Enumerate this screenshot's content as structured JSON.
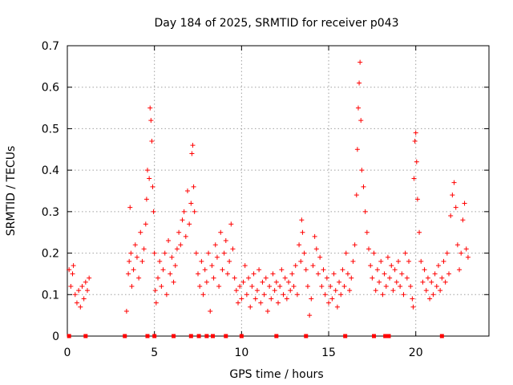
{
  "chart_data": {
    "type": "scatter",
    "title": "Day 184 of 2025, SRMTID for receiver p043",
    "xlabel": "GPS time / hours",
    "ylabel": "SRMTID / TECUs",
    "xlim": [
      0,
      24.2
    ],
    "ylim": [
      0,
      0.7
    ],
    "xticks": [
      0,
      5,
      10,
      15,
      20
    ],
    "yticks": [
      0,
      0.1,
      0.2,
      0.3,
      0.4,
      0.5,
      0.6,
      0.7
    ],
    "grid": true,
    "series": [
      {
        "name": "SRMTID",
        "color": "#ff0000",
        "marker": "+",
        "points": [
          [
            0.1,
            0.16
          ],
          [
            0.2,
            0.12
          ],
          [
            0.3,
            0.15
          ],
          [
            0.35,
            0.17
          ],
          [
            0.45,
            0.1
          ],
          [
            0.55,
            0.08
          ],
          [
            0.65,
            0.11
          ],
          [
            0.75,
            0.07
          ],
          [
            0.85,
            0.12
          ],
          [
            0.95,
            0.09
          ],
          [
            1.05,
            0.13
          ],
          [
            1.15,
            0.11
          ],
          [
            1.25,
            0.14
          ],
          [
            3.4,
            0.06
          ],
          [
            3.5,
            0.15
          ],
          [
            3.55,
            0.18
          ],
          [
            3.6,
            0.31
          ],
          [
            3.65,
            0.2
          ],
          [
            3.7,
            0.12
          ],
          [
            3.8,
            0.16
          ],
          [
            3.9,
            0.22
          ],
          [
            4.0,
            0.19
          ],
          [
            4.1,
            0.14
          ],
          [
            4.2,
            0.25
          ],
          [
            4.3,
            0.18
          ],
          [
            4.4,
            0.21
          ],
          [
            4.5,
            0.27
          ],
          [
            4.55,
            0.33
          ],
          [
            4.6,
            0.4
          ],
          [
            4.7,
            0.38
          ],
          [
            4.75,
            0.55
          ],
          [
            4.8,
            0.52
          ],
          [
            4.85,
            0.47
          ],
          [
            4.9,
            0.36
          ],
          [
            4.95,
            0.3
          ],
          [
            5.0,
            0.2
          ],
          [
            5.05,
            0.11
          ],
          [
            5.1,
            0.08
          ],
          [
            5.2,
            0.14
          ],
          [
            5.3,
            0.18
          ],
          [
            5.4,
            0.12
          ],
          [
            5.5,
            0.16
          ],
          [
            5.6,
            0.2
          ],
          [
            5.7,
            0.1
          ],
          [
            5.8,
            0.23
          ],
          [
            5.9,
            0.15
          ],
          [
            6.0,
            0.19
          ],
          [
            6.1,
            0.13
          ],
          [
            6.2,
            0.17
          ],
          [
            6.3,
            0.21
          ],
          [
            6.4,
            0.25
          ],
          [
            6.5,
            0.22
          ],
          [
            6.6,
            0.28
          ],
          [
            6.7,
            0.3
          ],
          [
            6.8,
            0.24
          ],
          [
            6.9,
            0.35
          ],
          [
            7.0,
            0.27
          ],
          [
            7.1,
            0.32
          ],
          [
            7.15,
            0.44
          ],
          [
            7.2,
            0.46
          ],
          [
            7.25,
            0.36
          ],
          [
            7.3,
            0.3
          ],
          [
            7.4,
            0.2
          ],
          [
            7.5,
            0.15
          ],
          [
            7.6,
            0.12
          ],
          [
            7.7,
            0.18
          ],
          [
            7.8,
            0.1
          ],
          [
            7.9,
            0.16
          ],
          [
            8.0,
            0.13
          ],
          [
            8.1,
            0.2
          ],
          [
            8.2,
            0.06
          ],
          [
            8.3,
            0.17
          ],
          [
            8.4,
            0.14
          ],
          [
            8.5,
            0.22
          ],
          [
            8.6,
            0.19
          ],
          [
            8.7,
            0.12
          ],
          [
            8.8,
            0.25
          ],
          [
            8.9,
            0.16
          ],
          [
            9.0,
            0.2
          ],
          [
            9.1,
            0.23
          ],
          [
            9.2,
            0.15
          ],
          [
            9.3,
            0.18
          ],
          [
            9.4,
            0.27
          ],
          [
            9.5,
            0.21
          ],
          [
            9.6,
            0.14
          ],
          [
            9.7,
            0.11
          ],
          [
            9.8,
            0.08
          ],
          [
            9.9,
            0.12
          ],
          [
            10.0,
            0.09
          ],
          [
            10.1,
            0.13
          ],
          [
            10.2,
            0.17
          ],
          [
            10.3,
            0.1
          ],
          [
            10.4,
            0.14
          ],
          [
            10.5,
            0.07
          ],
          [
            10.6,
            0.12
          ],
          [
            10.7,
            0.15
          ],
          [
            10.8,
            0.09
          ],
          [
            10.9,
            0.11
          ],
          [
            11.0,
            0.16
          ],
          [
            11.1,
            0.08
          ],
          [
            11.2,
            0.13
          ],
          [
            11.3,
            0.1
          ],
          [
            11.4,
            0.14
          ],
          [
            11.5,
            0.06
          ],
          [
            11.6,
            0.12
          ],
          [
            11.7,
            0.09
          ],
          [
            11.8,
            0.15
          ],
          [
            11.9,
            0.11
          ],
          [
            12.0,
            0.13
          ],
          [
            12.1,
            0.08
          ],
          [
            12.2,
            0.12
          ],
          [
            12.3,
            0.16
          ],
          [
            12.4,
            0.1
          ],
          [
            12.5,
            0.14
          ],
          [
            12.6,
            0.09
          ],
          [
            12.7,
            0.13
          ],
          [
            12.8,
            0.11
          ],
          [
            12.9,
            0.15
          ],
          [
            13.0,
            0.12
          ],
          [
            13.1,
            0.17
          ],
          [
            13.2,
            0.1
          ],
          [
            13.3,
            0.22
          ],
          [
            13.4,
            0.18
          ],
          [
            13.45,
            0.28
          ],
          [
            13.5,
            0.25
          ],
          [
            13.6,
            0.2
          ],
          [
            13.7,
            0.16
          ],
          [
            13.8,
            0.12
          ],
          [
            13.9,
            0.05
          ],
          [
            14.0,
            0.09
          ],
          [
            14.1,
            0.17
          ],
          [
            14.2,
            0.24
          ],
          [
            14.3,
            0.21
          ],
          [
            14.4,
            0.15
          ],
          [
            14.5,
            0.19
          ],
          [
            14.6,
            0.12
          ],
          [
            14.7,
            0.16
          ],
          [
            14.8,
            0.1
          ],
          [
            14.9,
            0.14
          ],
          [
            15.0,
            0.08
          ],
          [
            15.1,
            0.12
          ],
          [
            15.2,
            0.09
          ],
          [
            15.3,
            0.15
          ],
          [
            15.4,
            0.11
          ],
          [
            15.5,
            0.07
          ],
          [
            15.6,
            0.13
          ],
          [
            15.7,
            0.1
          ],
          [
            15.8,
            0.16
          ],
          [
            15.9,
            0.12
          ],
          [
            16.0,
            0.2
          ],
          [
            16.1,
            0.15
          ],
          [
            16.2,
            0.11
          ],
          [
            16.3,
            0.14
          ],
          [
            16.4,
            0.18
          ],
          [
            16.5,
            0.22
          ],
          [
            16.6,
            0.34
          ],
          [
            16.65,
            0.45
          ],
          [
            16.7,
            0.55
          ],
          [
            16.75,
            0.61
          ],
          [
            16.8,
            0.66
          ],
          [
            16.85,
            0.52
          ],
          [
            16.9,
            0.4
          ],
          [
            17.0,
            0.36
          ],
          [
            17.1,
            0.3
          ],
          [
            17.2,
            0.25
          ],
          [
            17.3,
            0.21
          ],
          [
            17.4,
            0.17
          ],
          [
            17.5,
            0.14
          ],
          [
            17.6,
            0.2
          ],
          [
            17.7,
            0.11
          ],
          [
            17.8,
            0.16
          ],
          [
            17.9,
            0.13
          ],
          [
            18.0,
            0.18
          ],
          [
            18.1,
            0.1
          ],
          [
            18.2,
            0.15
          ],
          [
            18.3,
            0.12
          ],
          [
            18.4,
            0.19
          ],
          [
            18.5,
            0.14
          ],
          [
            18.6,
            0.17
          ],
          [
            18.7,
            0.11
          ],
          [
            18.8,
            0.16
          ],
          [
            18.9,
            0.13
          ],
          [
            19.0,
            0.18
          ],
          [
            19.1,
            0.12
          ],
          [
            19.2,
            0.15
          ],
          [
            19.3,
            0.1
          ],
          [
            19.4,
            0.2
          ],
          [
            19.5,
            0.14
          ],
          [
            19.6,
            0.18
          ],
          [
            19.7,
            0.12
          ],
          [
            19.8,
            0.09
          ],
          [
            19.85,
            0.07
          ],
          [
            19.9,
            0.38
          ],
          [
            19.95,
            0.47
          ],
          [
            20.0,
            0.49
          ],
          [
            20.05,
            0.42
          ],
          [
            20.1,
            0.33
          ],
          [
            20.2,
            0.25
          ],
          [
            20.3,
            0.18
          ],
          [
            20.4,
            0.13
          ],
          [
            20.5,
            0.16
          ],
          [
            20.6,
            0.11
          ],
          [
            20.7,
            0.14
          ],
          [
            20.8,
            0.09
          ],
          [
            20.9,
            0.13
          ],
          [
            21.0,
            0.1
          ],
          [
            21.1,
            0.15
          ],
          [
            21.2,
            0.12
          ],
          [
            21.3,
            0.17
          ],
          [
            21.4,
            0.11
          ],
          [
            21.5,
            0.14
          ],
          [
            21.6,
            0.18
          ],
          [
            21.7,
            0.13
          ],
          [
            21.8,
            0.2
          ],
          [
            21.9,
            0.15
          ],
          [
            22.0,
            0.29
          ],
          [
            22.1,
            0.34
          ],
          [
            22.2,
            0.37
          ],
          [
            22.3,
            0.31
          ],
          [
            22.4,
            0.22
          ],
          [
            22.5,
            0.16
          ],
          [
            22.6,
            0.2
          ],
          [
            22.7,
            0.28
          ],
          [
            22.8,
            0.32
          ],
          [
            22.9,
            0.21
          ],
          [
            23.0,
            0.19
          ]
        ]
      }
    ],
    "gap_markers_x": [
      0.1,
      1.05,
      3.3,
      4.6,
      5.0,
      6.1,
      7.1,
      7.55,
      8.0,
      8.35,
      9.1,
      10.0,
      12.0,
      13.7,
      15.95,
      17.6,
      18.25,
      18.45,
      21.5
    ]
  }
}
